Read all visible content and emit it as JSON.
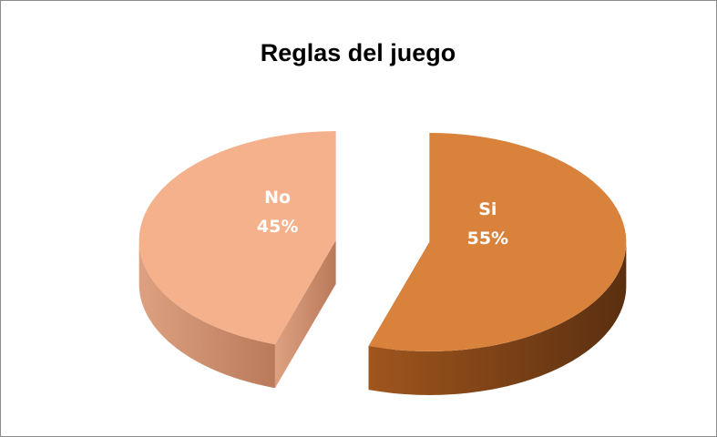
{
  "chart_data": {
    "type": "pie",
    "title": "Reglas del juego",
    "categories": [
      "Si",
      "No"
    ],
    "values": [
      55,
      45
    ],
    "value_labels": [
      "55%",
      "45%"
    ],
    "colors": [
      "#D9823C",
      "#F4B18B"
    ]
  }
}
